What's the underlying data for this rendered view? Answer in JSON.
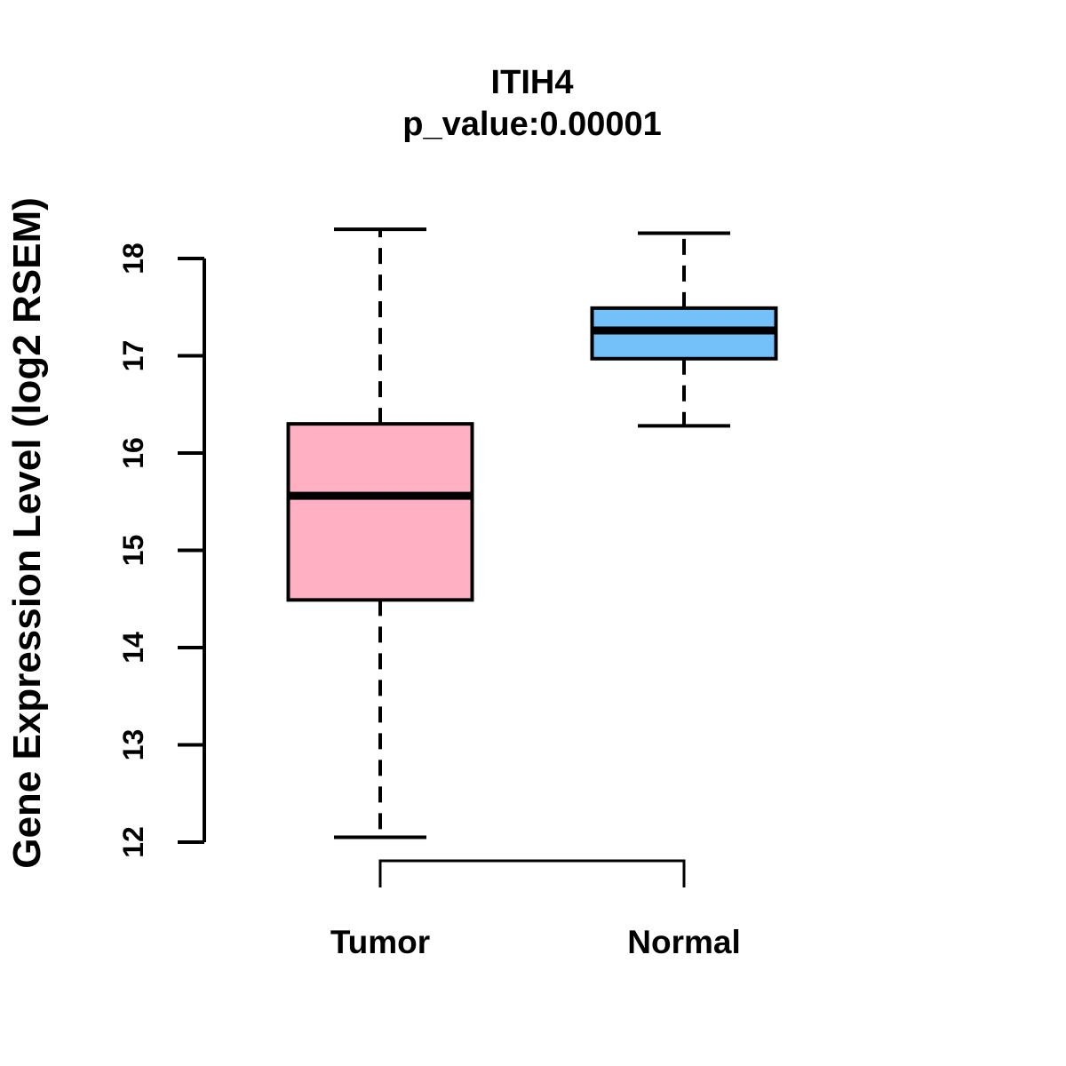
{
  "title": "ITIH4",
  "subtitle": "p_value:0.00001",
  "y_axis_label": "Gene Expression Level (log2 RSEM)",
  "colors": {
    "tumor_fill": "#FFB0C2",
    "normal_fill": "#74C0F8",
    "line": "#000000",
    "background": "#FFFFFF"
  },
  "chart_data": {
    "type": "boxplot",
    "title": "ITIH4",
    "subtitle": "p_value:0.00001",
    "xlabel": "",
    "ylabel": "Gene Expression Level (log2 RSEM)",
    "ylim": [
      12,
      18
    ],
    "yticks": [
      12,
      13,
      14,
      15,
      16,
      17,
      18
    ],
    "categories": [
      "Tumor",
      "Normal"
    ],
    "grid": false,
    "legend": false,
    "series": [
      {
        "name": "Tumor",
        "color": "#FFB0C2",
        "whisker_low": 12.05,
        "q1": 14.49,
        "median": 15.56,
        "q3": 16.3,
        "whisker_high": 18.3
      },
      {
        "name": "Normal",
        "color": "#74C0F8",
        "whisker_low": 16.28,
        "q1": 16.97,
        "median": 17.26,
        "q3": 17.49,
        "whisker_high": 18.26
      }
    ]
  }
}
